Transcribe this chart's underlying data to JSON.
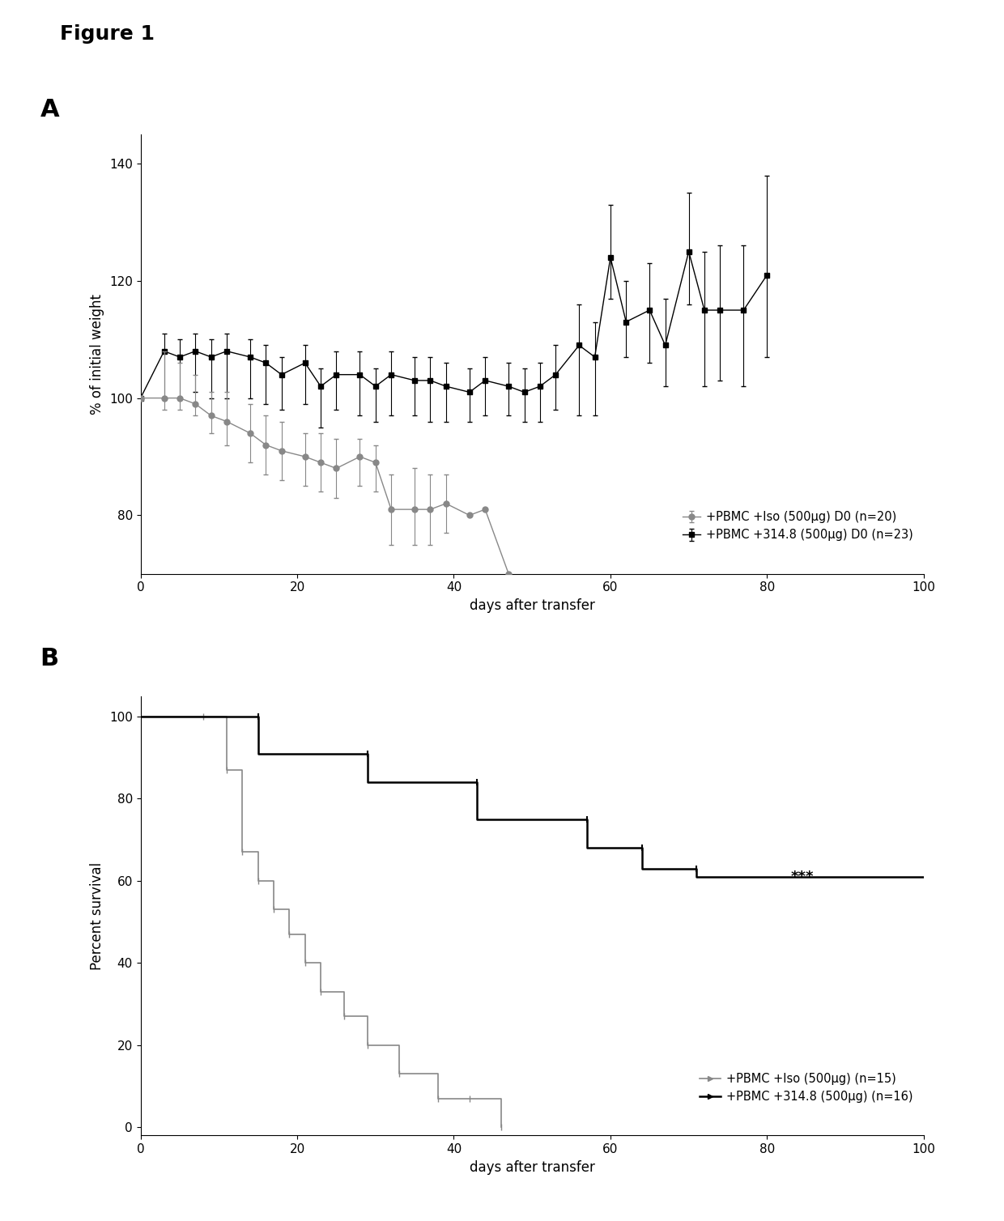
{
  "fig_title": "Figure 1",
  "panel_A": {
    "xlabel": "days after transfer",
    "ylabel": "% of initial weight",
    "xlim": [
      0,
      100
    ],
    "ylim": [
      70,
      145
    ],
    "yticks": [
      80,
      100,
      120,
      140
    ],
    "xticks": [
      0,
      20,
      40,
      60,
      80,
      100
    ],
    "iso_label": "+PBMC +Iso (500μg) D0 (n=20)",
    "ab_label": "+PBMC +314.8 (500μg) D0 (n=23)",
    "iso_color": "#888888",
    "ab_color": "#000000",
    "iso_x": [
      0,
      3,
      5,
      7,
      9,
      11,
      14,
      16,
      18,
      21,
      23,
      25,
      28,
      30,
      32,
      35,
      37,
      39,
      42,
      44,
      47
    ],
    "iso_y": [
      100,
      100,
      100,
      99,
      97,
      96,
      94,
      92,
      91,
      90,
      89,
      88,
      90,
      89,
      81,
      81,
      81,
      82,
      80,
      81,
      70
    ],
    "iso_yerr_lo": [
      0,
      2,
      2,
      2,
      3,
      4,
      5,
      5,
      5,
      5,
      5,
      5,
      5,
      5,
      6,
      6,
      6,
      5,
      0,
      0,
      0
    ],
    "iso_yerr_hi": [
      0,
      8,
      6,
      5,
      4,
      5,
      5,
      5,
      5,
      4,
      5,
      5,
      3,
      3,
      6,
      7,
      6,
      5,
      0,
      0,
      0
    ],
    "ab_x": [
      0,
      3,
      5,
      7,
      9,
      11,
      14,
      16,
      18,
      21,
      23,
      25,
      28,
      30,
      32,
      35,
      37,
      39,
      42,
      44,
      47,
      49,
      51,
      53,
      56,
      58,
      60,
      62,
      65,
      67,
      70,
      72,
      74,
      77,
      80
    ],
    "ab_y": [
      100,
      108,
      107,
      108,
      107,
      108,
      107,
      106,
      104,
      106,
      102,
      104,
      104,
      102,
      104,
      103,
      103,
      102,
      101,
      103,
      102,
      101,
      102,
      104,
      109,
      107,
      124,
      113,
      115,
      109,
      125,
      115,
      115,
      115,
      121
    ],
    "ab_yerr_lo": [
      0,
      8,
      7,
      7,
      7,
      8,
      7,
      7,
      6,
      7,
      7,
      6,
      7,
      6,
      7,
      6,
      7,
      6,
      5,
      6,
      5,
      5,
      6,
      6,
      12,
      10,
      7,
      6,
      9,
      7,
      9,
      13,
      12,
      13,
      14
    ],
    "ab_yerr_hi": [
      0,
      3,
      3,
      3,
      3,
      3,
      3,
      3,
      3,
      3,
      3,
      4,
      4,
      3,
      4,
      4,
      4,
      4,
      4,
      4,
      4,
      4,
      4,
      5,
      7,
      6,
      9,
      7,
      8,
      8,
      10,
      10,
      11,
      11,
      17
    ]
  },
  "panel_B": {
    "xlabel": "days after transfer",
    "ylabel": "Percent survival",
    "xlim": [
      0,
      100
    ],
    "ylim": [
      -2,
      105
    ],
    "yticks": [
      0,
      20,
      40,
      60,
      80,
      100
    ],
    "xticks": [
      0,
      20,
      40,
      60,
      80,
      100
    ],
    "iso_label": "+PBMC +Iso (500μg) (n=15)",
    "ab_label": "+PBMC +314.8 (500μg) (n=16)",
    "iso_color": "#888888",
    "ab_color": "#000000",
    "iso_steps_x": [
      0,
      8,
      11,
      13,
      15,
      17,
      19,
      21,
      23,
      26,
      29,
      33,
      38,
      42,
      46
    ],
    "iso_steps_y": [
      100,
      87,
      67,
      60,
      53,
      47,
      40,
      33,
      27,
      20,
      13,
      7,
      7,
      7,
      0
    ],
    "ab_steps_x": [
      0,
      15,
      29,
      43,
      57,
      64,
      71,
      100
    ],
    "ab_steps_y": [
      100,
      91,
      84,
      75,
      68,
      63,
      61,
      61
    ],
    "star_x": 83,
    "star_y": 61,
    "star_text": "***",
    "iso_tick_x": [
      8,
      11,
      13,
      15,
      17,
      19,
      21,
      23,
      26,
      29,
      33,
      38,
      42,
      46
    ],
    "iso_tick_y": [
      100,
      87,
      67,
      60,
      53,
      47,
      40,
      33,
      27,
      20,
      13,
      7,
      7,
      0
    ],
    "ab_tick_x": [
      15,
      29,
      43,
      57,
      64,
      71
    ],
    "ab_tick_y": [
      100,
      91,
      84,
      75,
      68,
      63
    ]
  }
}
